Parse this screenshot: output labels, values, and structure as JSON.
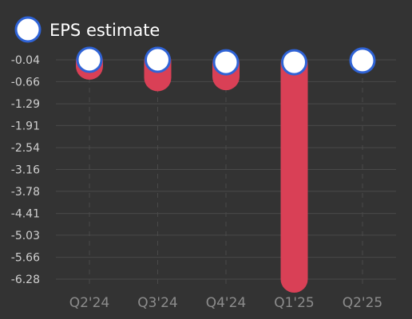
{
  "chart_data": {
    "type": "bar",
    "categories": [
      "Q2'24",
      "Q3'24",
      "Q4'24",
      "Q1'25",
      "Q2'25"
    ],
    "series": [
      {
        "name": "EPS estimate",
        "values": [
          -0.04,
          -0.04,
          -0.11,
          -0.11,
          -0.06
        ]
      },
      {
        "values": [
          -0.22,
          -0.55,
          -0.52,
          -6.28,
          null
        ]
      }
    ],
    "y_ticks": [
      "-0.04",
      "-0.66",
      "-1.29",
      "-1.91",
      "-2.54",
      "-3.16",
      "-3.78",
      "-4.41",
      "-5.03",
      "-5.66",
      "-6.28"
    ],
    "ylim": [
      -6.28,
      -0.04
    ],
    "grid": true,
    "legend_position": "top-left",
    "colors": {
      "marker_fill": "#ffffff",
      "marker_stroke": "#2f63d6",
      "bar": "#d94056",
      "grid": "#4a4a4a"
    }
  }
}
